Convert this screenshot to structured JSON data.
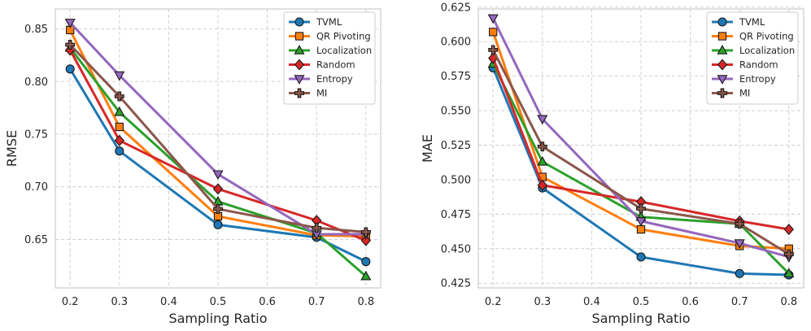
{
  "chart_data": [
    {
      "type": "line",
      "title": "",
      "xlabel": "Sampling Ratio",
      "ylabel": "RMSE",
      "x": [
        0.2,
        0.3,
        0.5,
        0.7,
        0.8
      ],
      "xlim": [
        0.17,
        0.83
      ],
      "ylim": [
        0.604,
        0.869
      ],
      "xticks": [
        0.2,
        0.3,
        0.4,
        0.5,
        0.6,
        0.7,
        0.8
      ],
      "xtick_labels": [
        "0.2",
        "0.3",
        "0.4",
        "0.5",
        "0.6",
        "0.7",
        "0.8"
      ],
      "yticks": [
        0.65,
        0.7,
        0.75,
        0.8,
        0.85
      ],
      "ytick_labels": [
        "0.65",
        "0.70",
        "0.75",
        "0.80",
        "0.85"
      ],
      "grid": true,
      "legend": "top-right",
      "series": [
        {
          "name": "TVML",
          "values": [
            0.812,
            0.734,
            0.664,
            0.652,
            0.629
          ]
        },
        {
          "name": "QR Pivoting",
          "values": [
            0.849,
            0.757,
            0.672,
            0.654,
            0.653
          ]
        },
        {
          "name": "Localization",
          "values": [
            0.832,
            0.771,
            0.686,
            0.656,
            0.615
          ]
        },
        {
          "name": "Random",
          "values": [
            0.83,
            0.744,
            0.698,
            0.668,
            0.649
          ]
        },
        {
          "name": "Entropy",
          "values": [
            0.856,
            0.806,
            0.712,
            0.655,
            0.655
          ]
        },
        {
          "name": "MI",
          "values": [
            0.835,
            0.786,
            0.679,
            0.661,
            0.657
          ]
        }
      ]
    },
    {
      "type": "line",
      "title": "",
      "xlabel": "Sampling Ratio",
      "ylabel": "MAE",
      "x": [
        0.2,
        0.3,
        0.5,
        0.7,
        0.8
      ],
      "xlim": [
        0.17,
        0.83
      ],
      "ylim": [
        0.4216,
        0.6237
      ],
      "xticks": [
        0.2,
        0.3,
        0.4,
        0.5,
        0.6,
        0.7,
        0.8
      ],
      "xtick_labels": [
        "0.2",
        "0.3",
        "0.4",
        "0.5",
        "0.6",
        "0.7",
        "0.8"
      ],
      "yticks": [
        0.425,
        0.45,
        0.475,
        0.5,
        0.525,
        0.55,
        0.575,
        0.6,
        0.625
      ],
      "ytick_labels": [
        "0.425",
        "0.450",
        "0.475",
        "0.500",
        "0.525",
        "0.550",
        "0.575",
        "0.600",
        "0.625"
      ],
      "grid": true,
      "legend": "top-right",
      "series": [
        {
          "name": "TVML",
          "values": [
            0.581,
            0.494,
            0.444,
            0.432,
            0.431
          ]
        },
        {
          "name": "QR Pivoting",
          "values": [
            0.607,
            0.502,
            0.464,
            0.452,
            0.45
          ]
        },
        {
          "name": "Localization",
          "values": [
            0.584,
            0.513,
            0.473,
            0.468,
            0.432
          ]
        },
        {
          "name": "Random",
          "values": [
            0.588,
            0.496,
            0.484,
            0.47,
            0.464
          ]
        },
        {
          "name": "Entropy",
          "values": [
            0.617,
            0.544,
            0.47,
            0.454,
            0.444
          ]
        },
        {
          "name": "MI",
          "values": [
            0.594,
            0.524,
            0.479,
            0.468,
            0.446
          ]
        }
      ]
    }
  ],
  "styles": {
    "series_colors": [
      "#1f77b4",
      "#ff7f0e",
      "#2ca02c",
      "#d62728",
      "#9467bd",
      "#8c564b"
    ],
    "series_markers": [
      "circle",
      "square",
      "triangle-up",
      "diamond",
      "triangle-down",
      "plus"
    ],
    "marker_edge_color": "#1a1a1a"
  }
}
